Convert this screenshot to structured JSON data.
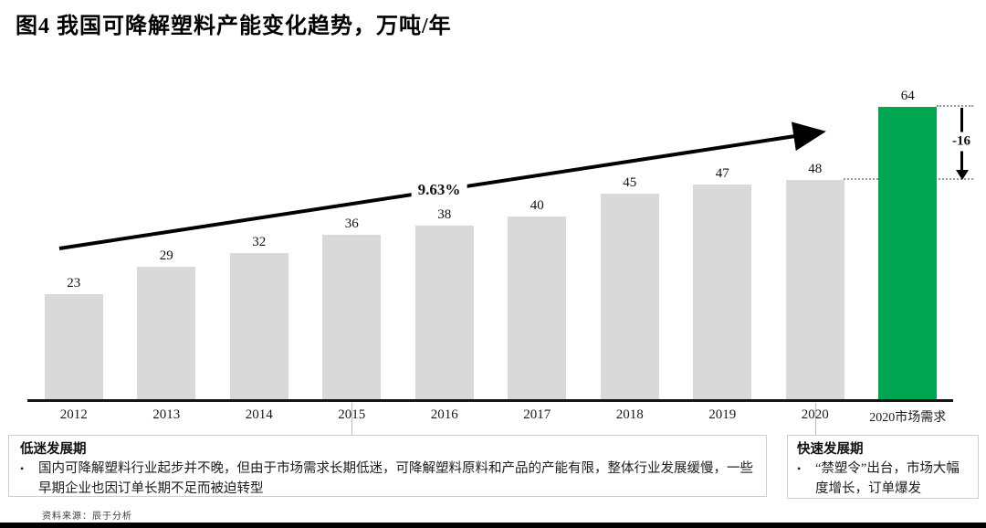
{
  "page": {
    "title": "图4 我国可降解塑料产能变化趋势，万吨/年",
    "source": "资料来源：辰于分析"
  },
  "chart_data": {
    "type": "bar",
    "title": "我国可降解塑料产能变化趋势",
    "unit": "万吨/年",
    "categories": [
      "2012",
      "2013",
      "2014",
      "2015",
      "2016",
      "2017",
      "2018",
      "2019",
      "2020",
      "2020市场需求"
    ],
    "values": [
      23,
      29,
      32,
      36,
      38,
      40,
      45,
      47,
      48,
      64
    ],
    "highlight_index": 9,
    "colors": {
      "bar_default": "#D9D9D9",
      "bar_highlight": "#00A651",
      "axis": "#141414"
    },
    "ylim": [
      0,
      64
    ],
    "grid": false,
    "legend": false,
    "annotations": {
      "cagr_label": "9.63%",
      "gap_label": "-16",
      "gap_from_value": 64,
      "gap_to_value": 48
    }
  },
  "callouts": [
    {
      "heading": "低迷发展期",
      "bullets": [
        "国内可降解塑料行业起步并不晚，但由于市场需求长期低迷，可降解塑料原料和产品的产能有限，整体行业发展缓慢，一些早期企业也因订单长期不足而被迫转型"
      ]
    },
    {
      "heading": "快速发展期",
      "bullets": [
        "“禁塑令”出台，市场大幅度增长，订单爆发"
      ]
    }
  ]
}
